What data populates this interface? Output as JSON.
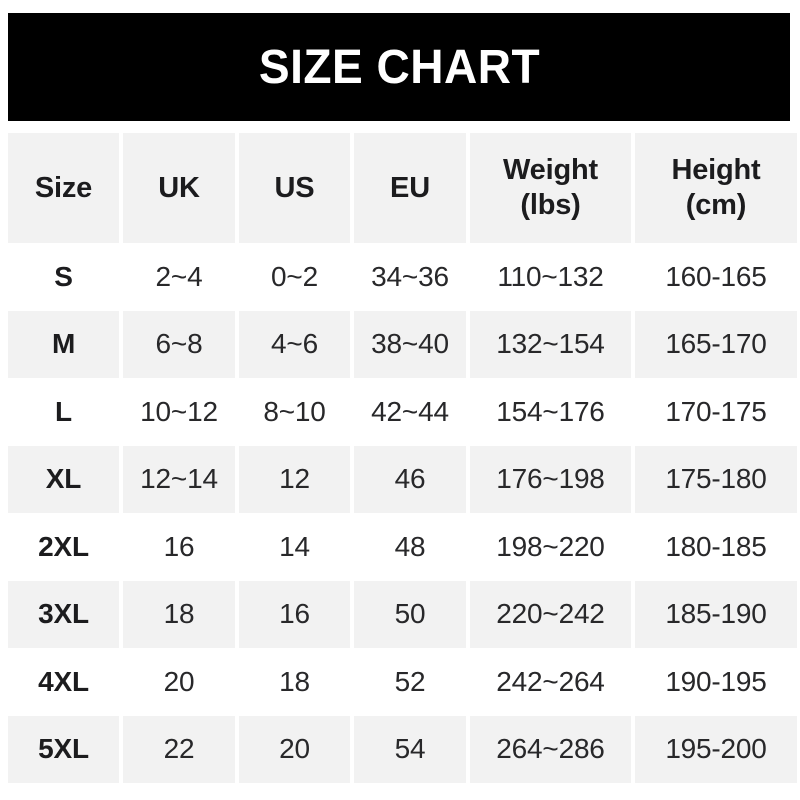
{
  "banner": {
    "title": "SIZE CHART",
    "bg": "#000000",
    "text_color": "#ffffff"
  },
  "table": {
    "stripe_bg": "#f2f2f2",
    "headers": [
      [
        "Size"
      ],
      [
        "UK"
      ],
      [
        "US"
      ],
      [
        "EU"
      ],
      [
        "Weight",
        "(lbs)"
      ],
      [
        "Height",
        "(cm)"
      ]
    ],
    "rows": [
      [
        "S",
        "2~4",
        "0~2",
        "34~36",
        "110~132",
        "160-165"
      ],
      [
        "M",
        "6~8",
        "4~6",
        "38~40",
        "132~154",
        "165-170"
      ],
      [
        "L",
        "10~12",
        "8~10",
        "42~44",
        "154~176",
        "170-175"
      ],
      [
        "XL",
        "12~14",
        "12",
        "46",
        "176~198",
        "175-180"
      ],
      [
        "2XL",
        "16",
        "14",
        "48",
        "198~220",
        "180-185"
      ],
      [
        "3XL",
        "18",
        "16",
        "50",
        "220~242",
        "185-190"
      ],
      [
        "4XL",
        "20",
        "18",
        "52",
        "242~264",
        "190-195"
      ],
      [
        "5XL",
        "22",
        "20",
        "54",
        "264~286",
        "195-200"
      ]
    ]
  },
  "chart_data": {
    "type": "table",
    "title": "SIZE CHART",
    "columns": [
      "Size",
      "UK",
      "US",
      "EU",
      "Weight (lbs)",
      "Height (cm)"
    ],
    "rows": [
      {
        "size": "S",
        "uk": "2~4",
        "us": "0~2",
        "eu": "34~36",
        "weight_lbs": "110~132",
        "height_cm": "160-165"
      },
      {
        "size": "M",
        "uk": "6~8",
        "us": "4~6",
        "eu": "38~40",
        "weight_lbs": "132~154",
        "height_cm": "165-170"
      },
      {
        "size": "L",
        "uk": "10~12",
        "us": "8~10",
        "eu": "42~44",
        "weight_lbs": "154~176",
        "height_cm": "170-175"
      },
      {
        "size": "XL",
        "uk": "12~14",
        "us": "12",
        "eu": "46",
        "weight_lbs": "176~198",
        "height_cm": "175-180"
      },
      {
        "size": "2XL",
        "uk": "16",
        "us": "14",
        "eu": "48",
        "weight_lbs": "198~220",
        "height_cm": "180-185"
      },
      {
        "size": "3XL",
        "uk": "18",
        "us": "16",
        "eu": "50",
        "weight_lbs": "220~242",
        "height_cm": "185-190"
      },
      {
        "size": "4XL",
        "uk": "20",
        "us": "18",
        "eu": "52",
        "weight_lbs": "242~264",
        "height_cm": "190-195"
      },
      {
        "size": "5XL",
        "uk": "22",
        "us": "20",
        "eu": "54",
        "weight_lbs": "264~286",
        "height_cm": "195-200"
      }
    ]
  }
}
